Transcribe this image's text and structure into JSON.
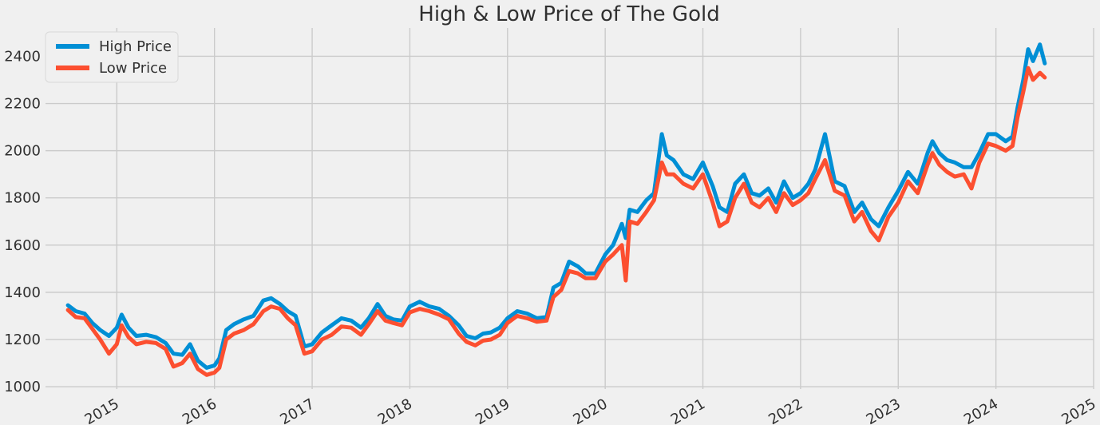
{
  "chart_data": {
    "type": "line",
    "title": "High & Low Price of The Gold",
    "xlabel": "",
    "ylabel": "",
    "grid": true,
    "legend_position": "upper-left",
    "xlim": [
      2014.27,
      2025.0
    ],
    "ylim": [
      990,
      2520
    ],
    "x_ticks": [
      "2015",
      "2016",
      "2017",
      "2018",
      "2019",
      "2020",
      "2021",
      "2022",
      "2023",
      "2024",
      "2025"
    ],
    "y_ticks": [
      1000,
      1200,
      1400,
      1600,
      1800,
      2000,
      2200,
      2400
    ],
    "series": [
      {
        "name": "High Price",
        "color": "#008fd5",
        "x": [
          2014.5,
          2014.58,
          2014.67,
          2014.75,
          2014.83,
          2014.92,
          2015.0,
          2015.05,
          2015.12,
          2015.2,
          2015.3,
          2015.4,
          2015.5,
          2015.58,
          2015.67,
          2015.75,
          2015.83,
          2015.92,
          2016.0,
          2016.05,
          2016.12,
          2016.2,
          2016.3,
          2016.4,
          2016.5,
          2016.58,
          2016.67,
          2016.75,
          2016.83,
          2016.92,
          2017.0,
          2017.1,
          2017.2,
          2017.3,
          2017.4,
          2017.5,
          2017.58,
          2017.67,
          2017.75,
          2017.83,
          2017.92,
          2018.0,
          2018.1,
          2018.2,
          2018.3,
          2018.4,
          2018.5,
          2018.58,
          2018.67,
          2018.75,
          2018.83,
          2018.92,
          2019.0,
          2019.1,
          2019.2,
          2019.3,
          2019.4,
          2019.47,
          2019.55,
          2019.63,
          2019.72,
          2019.8,
          2019.9,
          2020.0,
          2020.08,
          2020.17,
          2020.21,
          2020.25,
          2020.33,
          2020.42,
          2020.5,
          2020.58,
          2020.63,
          2020.7,
          2020.8,
          2020.9,
          2021.0,
          2021.1,
          2021.17,
          2021.25,
          2021.33,
          2021.42,
          2021.5,
          2021.58,
          2021.67,
          2021.75,
          2021.83,
          2021.92,
          2022.0,
          2022.08,
          2022.15,
          2022.25,
          2022.35,
          2022.45,
          2022.55,
          2022.63,
          2022.72,
          2022.8,
          2022.9,
          2023.0,
          2023.1,
          2023.2,
          2023.3,
          2023.35,
          2023.42,
          2023.5,
          2023.58,
          2023.67,
          2023.75,
          2023.83,
          2023.92,
          2024.0,
          2024.1,
          2024.17,
          2024.22,
          2024.28,
          2024.33,
          2024.38,
          2024.45,
          2024.5
        ],
        "values": [
          1345,
          1320,
          1310,
          1270,
          1240,
          1215,
          1250,
          1305,
          1250,
          1215,
          1220,
          1210,
          1185,
          1140,
          1135,
          1180,
          1110,
          1080,
          1090,
          1120,
          1240,
          1265,
          1285,
          1300,
          1365,
          1375,
          1350,
          1320,
          1300,
          1170,
          1180,
          1230,
          1260,
          1290,
          1280,
          1250,
          1290,
          1350,
          1300,
          1285,
          1280,
          1340,
          1360,
          1340,
          1330,
          1300,
          1260,
          1215,
          1205,
          1225,
          1230,
          1250,
          1290,
          1320,
          1310,
          1290,
          1295,
          1420,
          1440,
          1530,
          1510,
          1480,
          1480,
          1560,
          1600,
          1690,
          1630,
          1750,
          1740,
          1790,
          1820,
          2070,
          1980,
          1960,
          1900,
          1880,
          1950,
          1850,
          1760,
          1740,
          1860,
          1900,
          1820,
          1810,
          1840,
          1780,
          1870,
          1800,
          1820,
          1860,
          1920,
          2070,
          1870,
          1850,
          1740,
          1780,
          1710,
          1680,
          1760,
          1830,
          1910,
          1860,
          1990,
          2040,
          1990,
          1960,
          1950,
          1930,
          1930,
          1990,
          2070,
          2070,
          2040,
          2060,
          2180,
          2300,
          2430,
          2380,
          2450,
          2370
        ]
      },
      {
        "name": "Low Price",
        "color": "#fc4f30",
        "x": [
          2014.5,
          2014.58,
          2014.67,
          2014.75,
          2014.83,
          2014.92,
          2015.0,
          2015.05,
          2015.12,
          2015.2,
          2015.3,
          2015.4,
          2015.5,
          2015.58,
          2015.67,
          2015.75,
          2015.83,
          2015.92,
          2016.0,
          2016.05,
          2016.12,
          2016.2,
          2016.3,
          2016.4,
          2016.5,
          2016.58,
          2016.67,
          2016.75,
          2016.83,
          2016.92,
          2017.0,
          2017.1,
          2017.2,
          2017.3,
          2017.4,
          2017.5,
          2017.58,
          2017.67,
          2017.75,
          2017.83,
          2017.92,
          2018.0,
          2018.1,
          2018.2,
          2018.3,
          2018.4,
          2018.5,
          2018.58,
          2018.67,
          2018.75,
          2018.83,
          2018.92,
          2019.0,
          2019.1,
          2019.2,
          2019.3,
          2019.4,
          2019.47,
          2019.55,
          2019.63,
          2019.72,
          2019.8,
          2019.9,
          2020.0,
          2020.08,
          2020.17,
          2020.21,
          2020.25,
          2020.33,
          2020.42,
          2020.5,
          2020.58,
          2020.63,
          2020.7,
          2020.8,
          2020.9,
          2021.0,
          2021.1,
          2021.17,
          2021.25,
          2021.33,
          2021.42,
          2021.5,
          2021.58,
          2021.67,
          2021.75,
          2021.83,
          2021.92,
          2022.0,
          2022.08,
          2022.15,
          2022.25,
          2022.35,
          2022.45,
          2022.55,
          2022.63,
          2022.72,
          2022.8,
          2022.9,
          2023.0,
          2023.1,
          2023.2,
          2023.3,
          2023.35,
          2023.42,
          2023.5,
          2023.58,
          2023.67,
          2023.75,
          2023.83,
          2023.92,
          2024.0,
          2024.1,
          2024.17,
          2024.22,
          2024.28,
          2024.33,
          2024.38,
          2024.45,
          2024.5
        ],
        "values": [
          1325,
          1295,
          1290,
          1245,
          1200,
          1140,
          1180,
          1260,
          1210,
          1180,
          1190,
          1185,
          1160,
          1085,
          1100,
          1140,
          1075,
          1050,
          1060,
          1080,
          1200,
          1225,
          1240,
          1265,
          1320,
          1340,
          1330,
          1290,
          1260,
          1140,
          1150,
          1200,
          1220,
          1255,
          1250,
          1220,
          1265,
          1320,
          1280,
          1270,
          1260,
          1315,
          1330,
          1320,
          1305,
          1285,
          1225,
          1190,
          1175,
          1195,
          1200,
          1220,
          1270,
          1300,
          1290,
          1275,
          1280,
          1380,
          1410,
          1490,
          1480,
          1460,
          1460,
          1530,
          1560,
          1600,
          1450,
          1700,
          1690,
          1740,
          1790,
          1950,
          1900,
          1900,
          1860,
          1840,
          1900,
          1780,
          1680,
          1700,
          1800,
          1860,
          1780,
          1760,
          1800,
          1740,
          1820,
          1770,
          1790,
          1820,
          1880,
          1960,
          1830,
          1810,
          1700,
          1740,
          1660,
          1620,
          1720,
          1780,
          1870,
          1820,
          1940,
          1990,
          1940,
          1910,
          1890,
          1900,
          1840,
          1950,
          2030,
          2020,
          2000,
          2020,
          2140,
          2250,
          2350,
          2300,
          2330,
          2310
        ]
      }
    ]
  }
}
